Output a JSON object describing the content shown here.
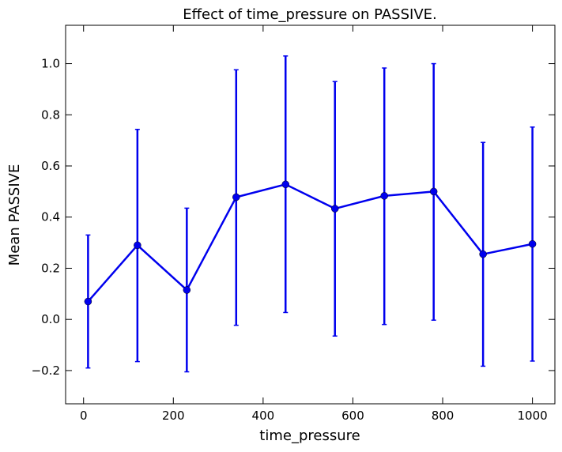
{
  "chart_data": {
    "type": "line",
    "title": "Effect of time_pressure on PASSIVE.",
    "xlabel": "time_pressure",
    "ylabel": "Mean PASSIVE",
    "xlim": [
      -40,
      1050
    ],
    "ylim": [
      -0.33,
      1.15
    ],
    "xticks": [
      0,
      200,
      400,
      600,
      800,
      1000
    ],
    "xtick_labels": [
      "0",
      "200",
      "400",
      "600",
      "800",
      "1000"
    ],
    "yticks": [
      -0.2,
      0.0,
      0.2,
      0.4,
      0.6,
      0.8,
      1.0
    ],
    "ytick_labels": [
      "−0.2",
      "0.0",
      "0.2",
      "0.4",
      "0.6",
      "0.8",
      "1.0"
    ],
    "grid": false,
    "legend": "none",
    "series": [
      {
        "color": "#0000ee",
        "marker": "circle",
        "x": [
          10,
          120,
          230,
          340,
          450,
          560,
          670,
          780,
          890,
          1000
        ],
        "y": [
          0.07,
          0.29,
          0.115,
          0.478,
          0.528,
          0.433,
          0.483,
          0.5,
          0.255,
          0.295
        ],
        "err_low": [
          -0.19,
          -0.165,
          -0.205,
          -0.023,
          0.027,
          -0.065,
          -0.02,
          -0.003,
          -0.183,
          -0.163
        ],
        "err_high": [
          0.33,
          0.743,
          0.435,
          0.976,
          1.03,
          0.93,
          0.983,
          1.0,
          0.692,
          0.752
        ]
      }
    ]
  }
}
